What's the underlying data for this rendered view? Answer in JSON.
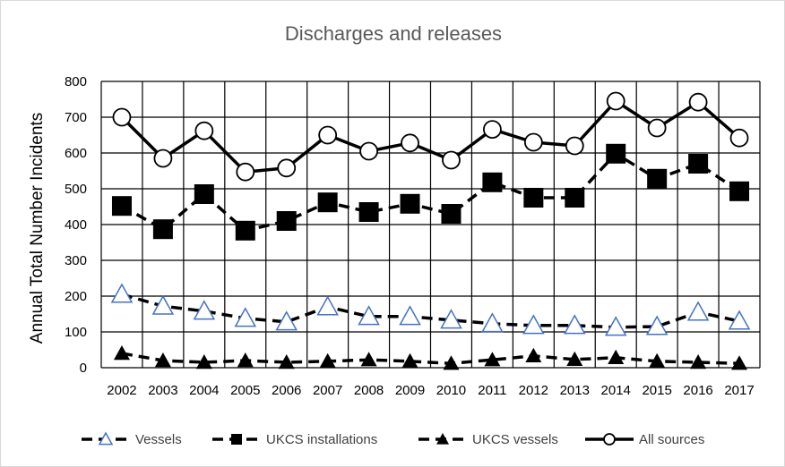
{
  "chart_data": {
    "type": "line",
    "title": "Discharges and releases",
    "xlabel": "",
    "ylabel": "Annual Total  Number Incidents",
    "categories": [
      "2002",
      "2003",
      "2004",
      "2005",
      "2006",
      "2007",
      "2008",
      "2009",
      "2010",
      "2011",
      "2012",
      "2013",
      "2014",
      "2015",
      "2016",
      "2017"
    ],
    "ylim": [
      0,
      800
    ],
    "yticks": [
      0,
      100,
      200,
      300,
      400,
      500,
      600,
      700,
      800
    ],
    "grid": true,
    "legend_position": "bottom",
    "series": [
      {
        "name": "Vessels",
        "marker": "triangle-open",
        "dash": "dashed",
        "color": "#000000",
        "marker_color": "#4472c4",
        "values": [
          205,
          172,
          158,
          138,
          128,
          170,
          143,
          143,
          133,
          123,
          118,
          118,
          113,
          115,
          155,
          130
        ]
      },
      {
        "name": "UKCS installations",
        "marker": "square",
        "dash": "dashed",
        "color": "#000000",
        "values": [
          452,
          387,
          485,
          383,
          410,
          462,
          435,
          458,
          430,
          518,
          475,
          475,
          598,
          528,
          570,
          493
        ]
      },
      {
        "name": "UKCS vessels",
        "marker": "triangle",
        "dash": "dashed",
        "color": "#000000",
        "values": [
          40,
          20,
          15,
          20,
          15,
          18,
          22,
          18,
          12,
          22,
          33,
          23,
          28,
          18,
          15,
          12
        ]
      },
      {
        "name": "All sources",
        "marker": "circle-open",
        "dash": "solid",
        "color": "#000000",
        "values": [
          700,
          585,
          662,
          547,
          558,
          650,
          605,
          628,
          580,
          666,
          630,
          620,
          745,
          670,
          742,
          642
        ]
      }
    ]
  }
}
